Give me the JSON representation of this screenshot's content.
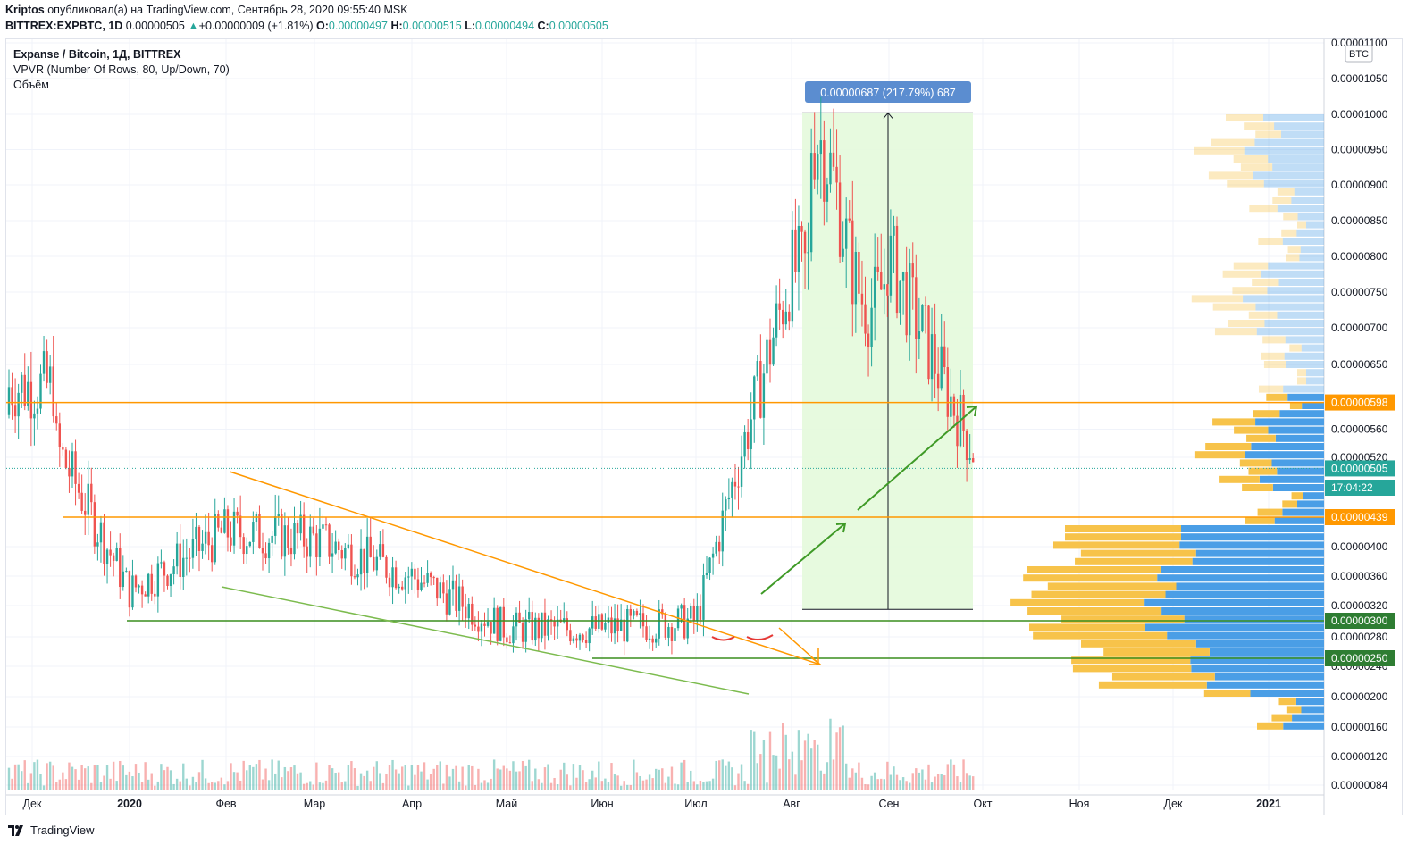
{
  "header": {
    "author": "Kriptos",
    "published_text": "опубликовал(а) на TradingView.com, Сентябрь 28, 2020 09:55:40 MSK",
    "symbol": "BITTREX:EXPBTC, 1D",
    "last": "0.00000505",
    "change": "+0.00000009 (+1.81%)",
    "o_label": "O:",
    "o": "0.00000497",
    "h_label": "H:",
    "h": "0.00000515",
    "l_label": "L:",
    "l": "0.00000494",
    "c_label": "C:",
    "c": "0.00000505"
  },
  "legend": {
    "title": "Expanse / Bitcoin, 1Д, BITTREX",
    "vpvr": "VPVR (Number Of Rows, 80, Up/Down, 70)",
    "volume": "Объём"
  },
  "currency_badge": "BTC",
  "measure_label": "0.00000687 (217.79%) 687",
  "footer": {
    "brand": "TradingView"
  },
  "colors": {
    "up": "#26a69a",
    "down": "#ef5350",
    "orange": "#ff9800",
    "green_line": "#3a8d1e",
    "trend_green": "#7cbb4e",
    "measure_bg": "#e4f9dc",
    "measure_label_bg": "#5b8dd0",
    "vpvr_up": "#4a9ee6",
    "vpvr_down": "#f7c34a",
    "price_badge": "#26a69a"
  },
  "chart_data": {
    "type": "candlestick",
    "title": "Expanse / Bitcoin, 1Д, BITTREX",
    "xlabel": "",
    "ylabel": "",
    "x_ticks": [
      "Дек",
      "2020",
      "Фев",
      "Мар",
      "Апр",
      "Май",
      "Июн",
      "Июл",
      "Авг",
      "Сен",
      "Окт",
      "Ноя",
      "Дек",
      "2021"
    ],
    "y_ticks": [
      "0.00001100",
      "0.00001050",
      "0.00001000",
      "0.00000950",
      "0.00000900",
      "0.00000850",
      "0.00000800",
      "0.00000750",
      "0.00000700",
      "0.00000650",
      "0.00000560",
      "0.00000520",
      "0.00000400",
      "0.00000360",
      "0.00000320",
      "0.00000280",
      "0.00000240",
      "0.00000200",
      "0.00000160",
      "0.00000120",
      "0.00000084"
    ],
    "y_scale": "log",
    "ylim": [
      8.3e-07,
      1.1e-05
    ],
    "price_labels": [
      {
        "value": "0.00000598",
        "color": "#ff9800"
      },
      {
        "value": "0.00000505",
        "color": "#26a69a"
      },
      {
        "value": "17:04:22",
        "color": "#26a69a"
      },
      {
        "value": "0.00000439",
        "color": "#ff9800"
      },
      {
        "value": "0.00000300",
        "color": "#2e7d32"
      },
      {
        "value": "0.00000250",
        "color": "#2e7d32"
      }
    ],
    "horizontal_levels": [
      5.98e-06,
      4.39e-06,
      3e-06,
      2.5e-06
    ],
    "current_price": 5.05e-06,
    "measure": {
      "from": 3.15e-06,
      "to": 1.002e-05,
      "delta": "0.00000687",
      "pct": "217.79%",
      "bars": 687
    },
    "candles_monthly_anchor": [
      {
        "date": "Дек",
        "close": 6e-06
      },
      {
        "date": "2020",
        "close": 3.4e-06
      },
      {
        "date": "Фев",
        "close": 4.2e-06
      },
      {
        "date": "Мар",
        "close": 4.1e-06
      },
      {
        "date": "Апр",
        "close": 3.6e-06
      },
      {
        "date": "Май",
        "close": 2.9e-06
      },
      {
        "date": "Июн",
        "close": 2.9e-06
      },
      {
        "date": "Июл",
        "close": 3e-06
      },
      {
        "date": "Авг",
        "close": 7.8e-06
      },
      {
        "date": "Сен",
        "close": 8e-06
      },
      {
        "date": "Окт",
        "close": 5e-06
      }
    ],
    "grid": true,
    "legend": "top-left"
  }
}
